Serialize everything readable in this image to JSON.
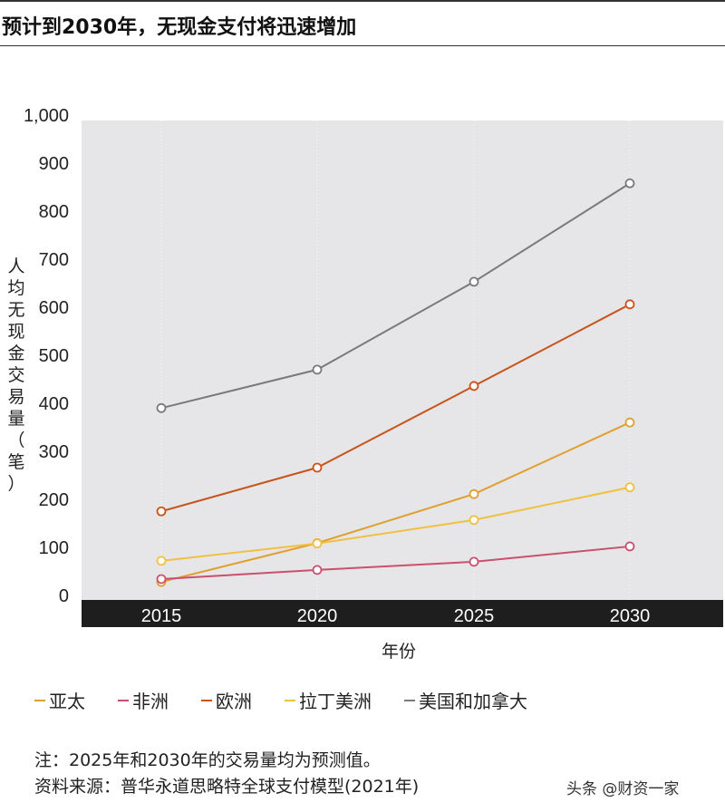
{
  "title": "预计到2030年，无现金支付将迅速增加",
  "chart_data": {
    "type": "line",
    "title": "预计到2030年，无现金支付将迅速增加",
    "xlabel": "年份",
    "ylabel": "人均无现金交易量（笔）",
    "x": [
      2015,
      2020,
      2025,
      2030
    ],
    "x_tick_labels": [
      "2015",
      "2020",
      "2025",
      "2030"
    ],
    "y_tick_labels": [
      "0",
      "100",
      "200",
      "300",
      "400",
      "500",
      "600",
      "700",
      "800",
      "900",
      "1,000"
    ],
    "ylim": [
      0,
      1000
    ],
    "grid": "vertical dotted",
    "legend_position": "bottom",
    "series": [
      {
        "name": "亚太",
        "color": "#e0a030",
        "values": [
          28,
          109,
          211,
          360
        ]
      },
      {
        "name": "非洲",
        "color": "#c9506e",
        "values": [
          34,
          53,
          70,
          102
        ]
      },
      {
        "name": "欧洲",
        "color": "#c8541c",
        "values": [
          175,
          266,
          436,
          606
        ]
      },
      {
        "name": "拉丁美洲",
        "color": "#f0c040",
        "values": [
          72,
          108,
          157,
          225
        ]
      },
      {
        "name": "美国和加拿大",
        "color": "#7a7a7a",
        "values": [
          390,
          470,
          653,
          858
        ]
      }
    ]
  },
  "notes": {
    "note": "注：2025年和2030年的交易量均为预测值。",
    "source": "资料来源：普华永道思略特全球支付模型(2021年)"
  },
  "watermark": "头条 @财资一家"
}
